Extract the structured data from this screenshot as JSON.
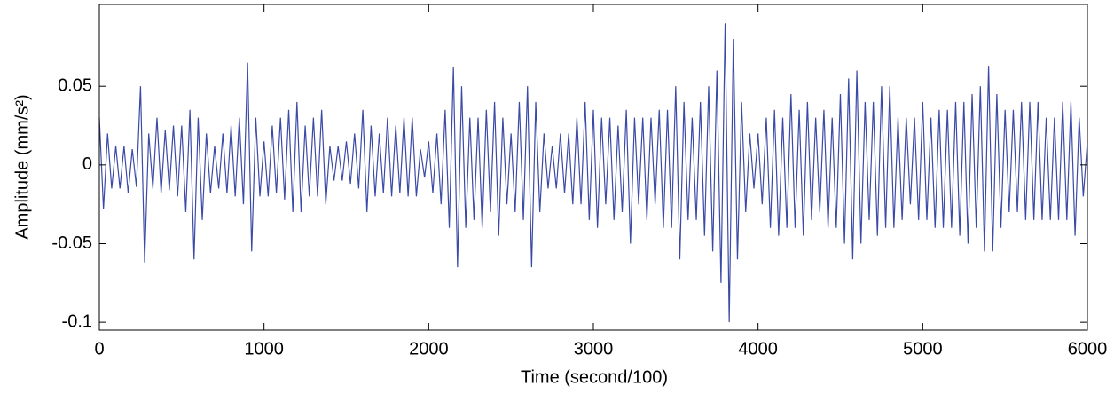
{
  "chart_data": {
    "type": "line",
    "xlabel": "Time  (second/100)",
    "ylabel": "Amplitude (mm/s²)",
    "color": "#3b4aa6",
    "xlim": [
      0,
      6000
    ],
    "xticks": [
      0,
      1000,
      2000,
      3000,
      4000,
      5000,
      6000
    ],
    "ylim": [
      -0.105,
      0.102
    ],
    "yticks": [
      -0.1,
      -0.05,
      0,
      0.05
    ],
    "x": [
      0,
      25,
      50,
      75,
      100,
      125,
      150,
      175,
      200,
      225,
      250,
      275,
      300,
      325,
      350,
      375,
      400,
      425,
      450,
      475,
      500,
      525,
      550,
      575,
      600,
      625,
      650,
      675,
      700,
      725,
      750,
      775,
      800,
      825,
      850,
      875,
      900,
      925,
      950,
      975,
      1000,
      1025,
      1050,
      1075,
      1100,
      1125,
      1150,
      1175,
      1200,
      1225,
      1250,
      1275,
      1300,
      1325,
      1350,
      1375,
      1400,
      1425,
      1450,
      1475,
      1500,
      1525,
      1550,
      1575,
      1600,
      1625,
      1650,
      1675,
      1700,
      1725,
      1750,
      1775,
      1800,
      1825,
      1850,
      1875,
      1900,
      1925,
      1950,
      1975,
      2000,
      2025,
      2050,
      2075,
      2100,
      2125,
      2150,
      2175,
      2200,
      2225,
      2250,
      2275,
      2300,
      2325,
      2350,
      2375,
      2400,
      2425,
      2450,
      2475,
      2500,
      2525,
      2550,
      2575,
      2600,
      2625,
      2650,
      2675,
      2700,
      2725,
      2750,
      2775,
      2800,
      2825,
      2850,
      2875,
      2900,
      2925,
      2950,
      2975,
      3000,
      3025,
      3050,
      3075,
      3100,
      3125,
      3150,
      3175,
      3200,
      3225,
      3250,
      3275,
      3300,
      3325,
      3350,
      3375,
      3400,
      3425,
      3450,
      3475,
      3500,
      3525,
      3550,
      3575,
      3600,
      3625,
      3650,
      3675,
      3700,
      3725,
      3750,
      3775,
      3800,
      3825,
      3850,
      3875,
      3900,
      3925,
      3950,
      3975,
      4000,
      4025,
      4050,
      4075,
      4100,
      4125,
      4150,
      4175,
      4200,
      4225,
      4250,
      4275,
      4300,
      4325,
      4350,
      4375,
      4400,
      4425,
      4450,
      4475,
      4500,
      4525,
      4550,
      4575,
      4600,
      4625,
      4650,
      4675,
      4700,
      4725,
      4750,
      4775,
      4800,
      4825,
      4850,
      4875,
      4900,
      4925,
      4950,
      4975,
      5000,
      5025,
      5050,
      5075,
      5100,
      5125,
      5150,
      5175,
      5200,
      5225,
      5250,
      5275,
      5300,
      5325,
      5350,
      5375,
      5400,
      5425,
      5450,
      5475,
      5500,
      5525,
      5550,
      5575,
      5600,
      5625,
      5650,
      5675,
      5700,
      5725,
      5750,
      5775,
      5800,
      5825,
      5850,
      5875,
      5900,
      5925,
      5950,
      5975,
      6000
    ],
    "values": [
      0.03,
      -0.028,
      0.02,
      -0.015,
      0.012,
      -0.015,
      0.012,
      -0.018,
      0.01,
      -0.014,
      0.05,
      -0.062,
      0.02,
      -0.015,
      0.03,
      -0.018,
      0.022,
      -0.016,
      0.025,
      -0.02,
      0.025,
      -0.03,
      0.035,
      -0.06,
      0.03,
      -0.035,
      0.02,
      -0.018,
      0.012,
      -0.015,
      0.02,
      -0.018,
      0.025,
      -0.02,
      0.03,
      -0.025,
      0.065,
      -0.055,
      0.03,
      -0.02,
      0.015,
      -0.02,
      0.025,
      -0.018,
      0.03,
      -0.022,
      0.035,
      -0.03,
      0.04,
      -0.03,
      0.025,
      -0.02,
      0.03,
      -0.02,
      0.035,
      -0.025,
      0.012,
      -0.01,
      0.012,
      -0.01,
      0.015,
      -0.012,
      0.02,
      -0.015,
      0.035,
      -0.03,
      0.025,
      -0.02,
      0.02,
      -0.018,
      0.03,
      -0.02,
      0.025,
      -0.018,
      0.03,
      -0.02,
      0.03,
      -0.02,
      0.01,
      -0.008,
      0.015,
      -0.018,
      0.02,
      -0.025,
      0.035,
      -0.04,
      0.062,
      -0.065,
      0.05,
      -0.04,
      0.03,
      -0.035,
      0.03,
      -0.04,
      0.035,
      -0.03,
      0.04,
      -0.045,
      0.03,
      -0.025,
      0.02,
      -0.03,
      0.04,
      -0.035,
      0.05,
      -0.065,
      0.04,
      -0.03,
      0.02,
      -0.015,
      0.012,
      -0.015,
      0.02,
      -0.018,
      0.02,
      -0.025,
      0.03,
      -0.025,
      0.04,
      -0.035,
      0.035,
      -0.04,
      0.03,
      -0.025,
      0.03,
      -0.035,
      0.025,
      -0.03,
      0.035,
      -0.05,
      0.03,
      -0.025,
      0.03,
      -0.035,
      0.03,
      -0.025,
      0.035,
      -0.04,
      0.035,
      -0.04,
      0.05,
      -0.06,
      0.04,
      -0.035,
      0.03,
      -0.035,
      0.04,
      -0.045,
      0.05,
      -0.055,
      0.06,
      -0.075,
      0.09,
      -0.1,
      0.08,
      -0.06,
      0.04,
      -0.03,
      0.02,
      -0.015,
      0.02,
      -0.025,
      0.03,
      -0.04,
      0.035,
      -0.045,
      0.03,
      -0.04,
      0.045,
      -0.04,
      0.035,
      -0.045,
      0.04,
      -0.035,
      0.03,
      -0.03,
      0.035,
      -0.04,
      0.03,
      -0.04,
      0.045,
      -0.05,
      0.055,
      -0.06,
      0.06,
      -0.05,
      0.04,
      -0.035,
      0.04,
      -0.045,
      0.05,
      -0.04,
      0.05,
      -0.04,
      0.03,
      -0.035,
      0.03,
      -0.025,
      0.03,
      -0.035,
      0.04,
      -0.035,
      0.03,
      -0.04,
      0.035,
      -0.04,
      0.035,
      -0.04,
      0.04,
      -0.045,
      0.04,
      -0.05,
      0.045,
      -0.04,
      0.05,
      -0.055,
      0.063,
      -0.055,
      0.045,
      -0.04,
      0.035,
      -0.03,
      0.035,
      -0.03,
      0.04,
      -0.035,
      0.04,
      -0.035,
      0.04,
      -0.035,
      0.03,
      -0.035,
      0.03,
      -0.035,
      0.04,
      -0.035,
      0.04,
      -0.045,
      0.03,
      -0.02,
      0.015
    ]
  }
}
